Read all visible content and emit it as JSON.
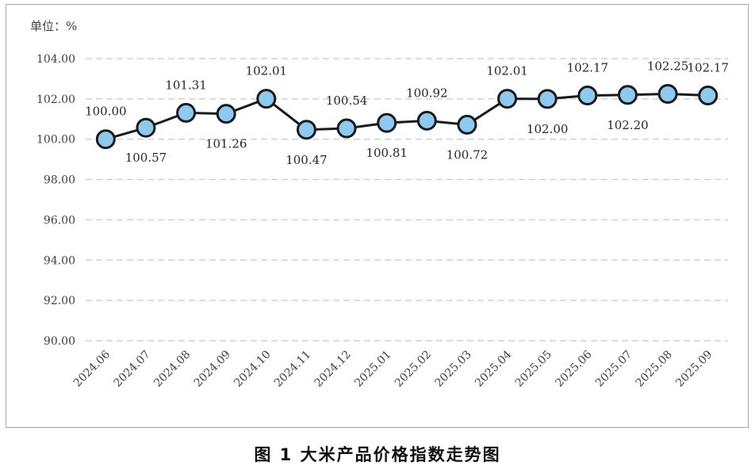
{
  "caption": "图 1  大米产品价格指数走势图",
  "chart_data": {
    "type": "line",
    "unit_label": "单位：%",
    "categories": [
      "2024.06",
      "2024.07",
      "2024.08",
      "2024.09",
      "2024.10",
      "2024.11",
      "2024.12",
      "2025.01",
      "2025.02",
      "2025.03",
      "2025.04",
      "2025.05",
      "2025.06",
      "2025.07",
      "2025.08",
      "2025.09"
    ],
    "series": [
      {
        "values": [
          100.0,
          100.57,
          101.31,
          101.26,
          102.01,
          100.47,
          100.54,
          100.81,
          100.92,
          100.72,
          102.01,
          102.0,
          102.17,
          102.2,
          102.25,
          102.17
        ],
        "labels": [
          "100.00",
          "100.57",
          "101.31",
          "101.26",
          "102.01",
          "100.47",
          "100.54",
          "100.81",
          "100.92",
          "100.72",
          "102.01",
          "102.00",
          "102.17",
          "102.20",
          "102.25",
          "102.17"
        ],
        "label_positions": [
          "above",
          "below",
          "above",
          "below",
          "above",
          "below",
          "above",
          "below",
          "above",
          "below",
          "above",
          "below",
          "above",
          "below",
          "above",
          "above"
        ]
      }
    ],
    "ylim": [
      90,
      104
    ],
    "ytick_step": 2,
    "ytick_labels": [
      "90.00",
      "92.00",
      "94.00",
      "96.00",
      "98.00",
      "100.00",
      "102.00",
      "104.00"
    ],
    "grid": true,
    "line_color": "#1a1a1a",
    "marker_fill": "#8ec9f0",
    "marker_edge": "#1a1a1a"
  }
}
